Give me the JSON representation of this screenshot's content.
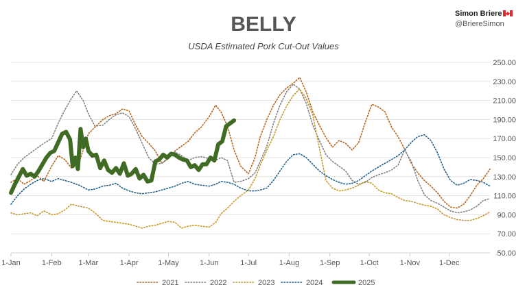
{
  "credit": {
    "name": "Simon Briere",
    "handle": "@BriereSimon",
    "flag_icon": "canada-flag-icon"
  },
  "chart_data": {
    "type": "line",
    "title": "BELLY",
    "subtitle": "USDA Estimated Pork Cut-Out Values",
    "xlabel": "",
    "ylabel": "",
    "ylim": [
      50,
      250
    ],
    "yticks": [
      50,
      70,
      90,
      110,
      130,
      150,
      170,
      190,
      210,
      230,
      250
    ],
    "ytick_labels": [
      "50.00",
      "70.00",
      "90.00",
      "110.00",
      "130.00",
      "150.00",
      "170.00",
      "190.00",
      "210.00",
      "230.00",
      "250.00"
    ],
    "xlim": [
      0,
      365
    ],
    "xticks": [
      0,
      31,
      59,
      90,
      120,
      151,
      181,
      212,
      243,
      273,
      304,
      334
    ],
    "xtick_labels": [
      "1-Jan",
      "1-Feb",
      "1-Mar",
      "1-Apr",
      "1-May",
      "1-Jun",
      "1-Jul",
      "1-Aug",
      "1-Sep",
      "1-Oct",
      "1-Nov",
      "1-Dec"
    ],
    "x_unit": "day of year",
    "grid": true,
    "legend_position": "bottom",
    "series": [
      {
        "name": "2021",
        "color": "#b5651d",
        "style": "dotted",
        "x": [
          0,
          5,
          10,
          15,
          20,
          25,
          31,
          36,
          41,
          46,
          52,
          59,
          64,
          70,
          75,
          80,
          85,
          90,
          95,
          100,
          105,
          110,
          115,
          120,
          125,
          130,
          135,
          140,
          145,
          151,
          156,
          160,
          165,
          170,
          175,
          181,
          186,
          190,
          195,
          200,
          205,
          210,
          215,
          220,
          225,
          230,
          235,
          240,
          245,
          250,
          255,
          260,
          265,
          270,
          275,
          280,
          285,
          290,
          295,
          300,
          305,
          310,
          315,
          320,
          325,
          330,
          335,
          340,
          345,
          350,
          355,
          360,
          365
        ],
        "y": [
          124,
          128,
          122,
          126,
          131,
          125,
          141,
          152,
          148,
          139,
          145,
          175,
          182,
          190,
          194,
          196,
          201,
          199,
          184,
          172,
          165,
          157,
          144,
          150,
          157,
          162,
          167,
          176,
          182,
          193,
          205,
          198,
          183,
          158,
          141,
          133,
          150,
          172,
          190,
          205,
          216,
          223,
          228,
          234,
          219,
          198,
          184,
          171,
          161,
          168,
          165,
          158,
          166,
          187,
          206,
          203,
          198,
          182,
          172,
          159,
          144,
          134,
          126,
          120,
          113,
          104,
          98,
          97,
          101,
          110,
          121,
          128,
          138
        ]
      },
      {
        "name": "2022",
        "color": "#808080",
        "style": "dotted",
        "x": [
          0,
          5,
          10,
          15,
          20,
          25,
          31,
          36,
          41,
          46,
          50,
          55,
          59,
          64,
          70,
          75,
          80,
          85,
          90,
          95,
          100,
          105,
          110,
          115,
          120,
          125,
          130,
          135,
          140,
          145,
          151,
          156,
          160,
          165,
          170,
          175,
          181,
          186,
          190,
          195,
          200,
          205,
          210,
          215,
          220,
          225,
          230,
          235,
          240,
          245,
          250,
          255,
          260,
          265,
          270,
          275,
          280,
          285,
          290,
          295,
          300,
          305,
          310,
          315,
          320,
          325,
          330,
          335,
          340,
          345,
          350,
          355,
          360,
          365
        ],
        "y": [
          132,
          143,
          150,
          155,
          160,
          165,
          170,
          186,
          200,
          212,
          220,
          210,
          196,
          183,
          184,
          190,
          195,
          197,
          193,
          180,
          165,
          150,
          143,
          144,
          149,
          156,
          152,
          147,
          150,
          151,
          149,
          147,
          150,
          147,
          124,
          125,
          128,
          134,
          146,
          162,
          186,
          205,
          219,
          227,
          222,
          207,
          184,
          168,
          153,
          146,
          141,
          136,
          126,
          122,
          124,
          129,
          132,
          134,
          137,
          142,
          158,
          146,
          126,
          111,
          105,
          102,
          98,
          94,
          92,
          93,
          95,
          99,
          105,
          107
        ]
      },
      {
        "name": "2023",
        "color": "#c49a2a",
        "style": "dotted",
        "x": [
          0,
          5,
          10,
          15,
          20,
          25,
          31,
          36,
          41,
          46,
          52,
          59,
          64,
          70,
          75,
          80,
          85,
          90,
          95,
          100,
          105,
          110,
          115,
          120,
          125,
          130,
          135,
          140,
          145,
          151,
          156,
          160,
          165,
          170,
          175,
          181,
          186,
          190,
          195,
          200,
          205,
          210,
          215,
          220,
          225,
          230,
          235,
          240,
          245,
          250,
          255,
          260,
          265,
          270,
          275,
          280,
          285,
          290,
          295,
          300,
          305,
          310,
          315,
          320,
          325,
          330,
          335,
          340,
          345,
          350,
          355,
          360,
          365
        ],
        "y": [
          92,
          90,
          91,
          92,
          89,
          94,
          90,
          91,
          95,
          101,
          99,
          97,
          92,
          84,
          83,
          82,
          81,
          80,
          78,
          76,
          78,
          79,
          81,
          83,
          82,
          76,
          78,
          79,
          78,
          77,
          82,
          91,
          97,
          104,
          110,
          116,
          128,
          142,
          158,
          172,
          190,
          204,
          215,
          222,
          212,
          195,
          160,
          126,
          118,
          115,
          116,
          118,
          121,
          125,
          123,
          116,
          113,
          112,
          108,
          105,
          104,
          102,
          100,
          99,
          96,
          90,
          87,
          85,
          84,
          84,
          86,
          89,
          93
        ]
      },
      {
        "name": "2024",
        "color": "#1f5f8b",
        "style": "dotted",
        "x": [
          0,
          5,
          10,
          15,
          20,
          25,
          31,
          36,
          41,
          46,
          52,
          59,
          64,
          70,
          75,
          80,
          85,
          90,
          95,
          100,
          105,
          110,
          115,
          120,
          125,
          130,
          135,
          140,
          145,
          151,
          156,
          160,
          165,
          170,
          175,
          181,
          186,
          190,
          195,
          200,
          205,
          210,
          215,
          220,
          225,
          230,
          235,
          240,
          245,
          250,
          255,
          260,
          265,
          270,
          275,
          280,
          285,
          290,
          295,
          300,
          305,
          310,
          315,
          320,
          325,
          330,
          335,
          340,
          345,
          350,
          355,
          360,
          365
        ],
        "y": [
          101,
          110,
          117,
          122,
          126,
          128,
          125,
          128,
          126,
          124,
          121,
          116,
          117,
          120,
          121,
          123,
          118,
          115,
          113,
          112,
          113,
          114,
          116,
          118,
          120,
          123,
          125,
          122,
          121,
          120,
          122,
          125,
          124,
          122,
          118,
          115,
          115,
          116,
          118,
          126,
          136,
          146,
          153,
          154,
          150,
          143,
          136,
          131,
          127,
          124,
          122,
          123,
          126,
          131,
          136,
          140,
          144,
          148,
          152,
          158,
          166,
          172,
          174,
          168,
          155,
          138,
          126,
          121,
          123,
          127,
          126,
          124,
          120
        ]
      },
      {
        "name": "2025",
        "color": "#3f6b24",
        "style": "solid",
        "x": [
          0,
          3,
          6,
          9,
          12,
          15,
          18,
          21,
          24,
          27,
          30,
          33,
          36,
          39,
          42,
          45,
          47,
          49,
          51,
          53,
          55,
          57,
          59,
          62,
          65,
          68,
          71,
          74,
          77,
          80,
          83,
          86,
          89,
          92,
          95,
          98,
          101,
          104,
          107,
          110,
          113,
          116,
          119,
          122,
          125,
          128,
          131,
          134,
          137,
          140,
          143,
          146,
          149,
          152,
          155,
          158,
          161,
          164,
          167,
          170
        ],
        "y": [
          113,
          122,
          130,
          138,
          131,
          133,
          130,
          136,
          143,
          150,
          155,
          157,
          166,
          175,
          177,
          169,
          141,
          150,
          138,
          180,
          161,
          170,
          157,
          152,
          153,
          139,
          147,
          137,
          134,
          139,
          133,
          144,
          131,
          133,
          138,
          128,
          132,
          125,
          126,
          146,
          148,
          153,
          150,
          154,
          153,
          150,
          148,
          147,
          140,
          142,
          137,
          143,
          143,
          150,
          147,
          164,
          167,
          183,
          186,
          189
        ]
      }
    ]
  }
}
